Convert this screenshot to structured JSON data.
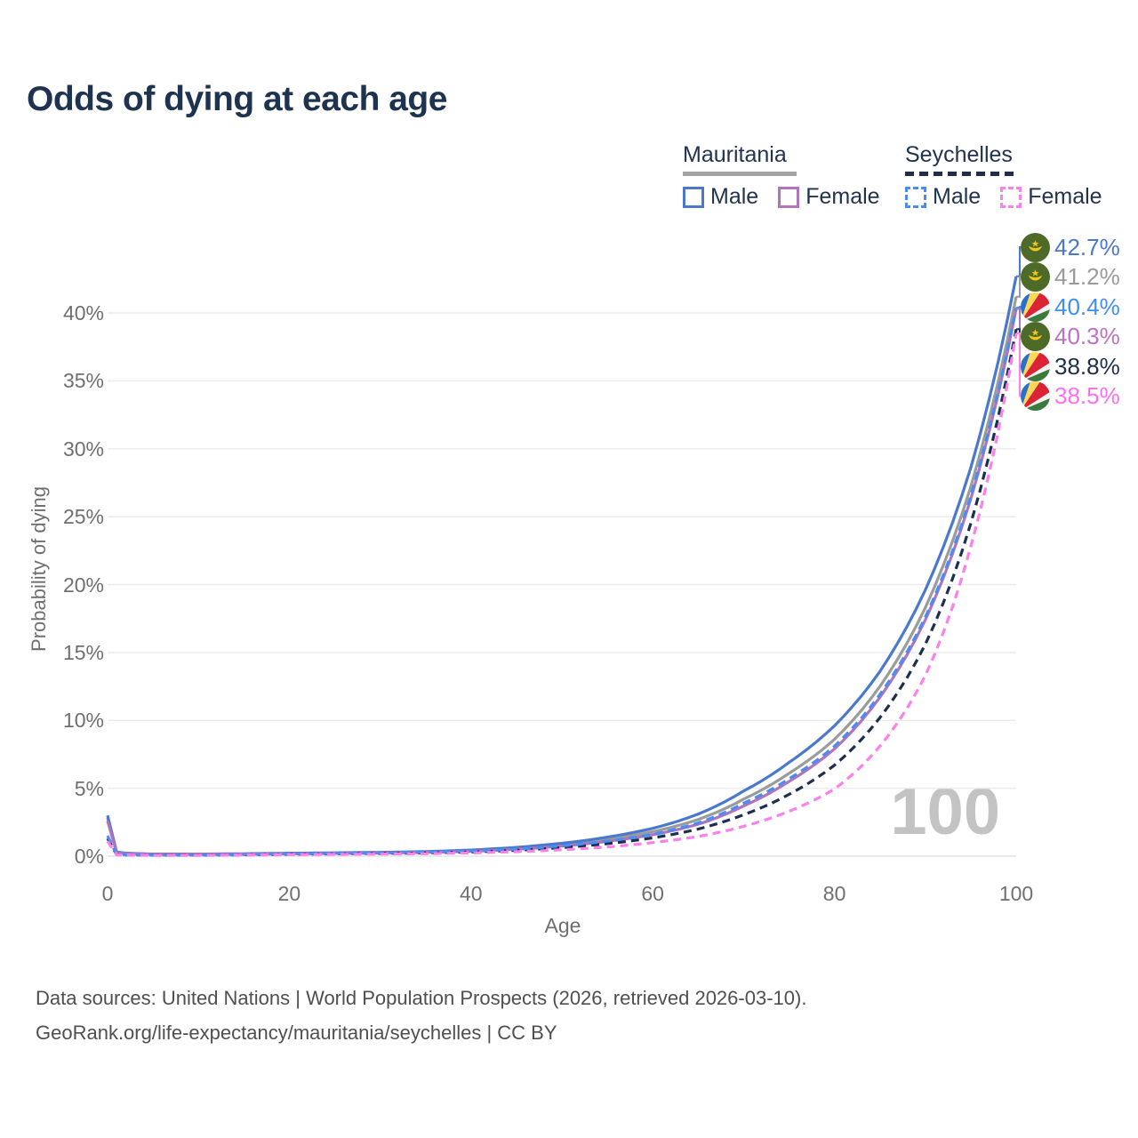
{
  "title": "Odds of dying at each age",
  "watermark": "100",
  "legend": {
    "groups": [
      {
        "name": "Mauritania",
        "line_style": "solid",
        "underline_color": "#a3a3a3",
        "items": [
          {
            "label": "Male",
            "color": "#4a78cc"
          },
          {
            "label": "Female",
            "color": "#b273bd"
          }
        ]
      },
      {
        "name": "Seychelles",
        "line_style": "dashed",
        "underline_color": "#1e2f4d",
        "items": [
          {
            "label": "Male",
            "color": "#4a8cf2"
          },
          {
            "label": "Female",
            "color": "#fb80ea"
          }
        ]
      }
    ]
  },
  "icons": {
    "flags": {
      "mauritania": {
        "name": "mauritania-flag-icon",
        "bg": "#4e6a28",
        "crescent": "#f2c71d"
      },
      "seychelles": {
        "name": "seychelles-flag-icon",
        "blue": "#2a6fc9",
        "yellow": "#fcd856",
        "red": "#da2334",
        "white": "#f2f2f2",
        "green": "#3c7a3c"
      }
    }
  },
  "chart_data": {
    "type": "line",
    "title": "Odds of dying at each age",
    "xlabel": "Age",
    "ylabel": "Probability of dying",
    "xlim": [
      0,
      100
    ],
    "ylim": [
      0,
      43
    ],
    "grid": "horizontal",
    "x_ticks": [
      "0",
      "20",
      "40",
      "60",
      "80",
      "100"
    ],
    "x_tick_values": [
      0,
      20,
      40,
      60,
      80,
      100
    ],
    "y_ticks": [
      "0%",
      "5%",
      "10%",
      "15%",
      "20%",
      "25%",
      "30%",
      "35%",
      "40%"
    ],
    "y_tick_values": [
      0,
      5,
      10,
      15,
      20,
      25,
      30,
      35,
      40
    ],
    "x": [
      0,
      1,
      2,
      5,
      10,
      15,
      20,
      25,
      30,
      35,
      40,
      45,
      50,
      55,
      60,
      65,
      70,
      75,
      80,
      85,
      90,
      95,
      100
    ],
    "series": [
      {
        "name": "Mauritania — Male",
        "country": "mauritania",
        "sex": "male",
        "color": "#4a78cc",
        "style": "solid",
        "end_label": "42.7%",
        "label_color": "#4a78cc",
        "values": [
          3.0,
          0.3,
          0.22,
          0.16,
          0.15,
          0.18,
          0.22,
          0.25,
          0.28,
          0.34,
          0.45,
          0.65,
          0.95,
          1.4,
          2.05,
          3.1,
          4.8,
          6.9,
          9.6,
          13.6,
          19.6,
          28.6,
          42.7
        ]
      },
      {
        "name": "Mauritania — Both sexes",
        "country": "mauritania",
        "sex": "both",
        "color": "#9b9b9b",
        "style": "solid",
        "end_label": "41.2%",
        "label_color": "#9b9b9b",
        "values": [
          2.8,
          0.27,
          0.2,
          0.15,
          0.14,
          0.16,
          0.2,
          0.23,
          0.26,
          0.31,
          0.41,
          0.58,
          0.85,
          1.25,
          1.8,
          2.7,
          4.2,
          6.1,
          8.6,
          12.5,
          18.3,
          27.2,
          41.2
        ]
      },
      {
        "name": "Seychelles — Male",
        "country": "seychelles",
        "sex": "male",
        "color": "#4a8cf2",
        "style": "dashed",
        "end_label": "40.4%",
        "label_color": "#3f8ef7",
        "values": [
          1.5,
          0.13,
          0.1,
          0.08,
          0.08,
          0.12,
          0.17,
          0.2,
          0.24,
          0.29,
          0.37,
          0.52,
          0.76,
          1.11,
          1.61,
          2.45,
          3.9,
          5.7,
          8.1,
          11.9,
          17.6,
          26.5,
          40.4
        ]
      },
      {
        "name": "Mauritania — Female",
        "country": "mauritania",
        "sex": "female",
        "color": "#b273bd",
        "style": "solid",
        "end_label": "40.3%",
        "label_color": "#c06fc4",
        "values": [
          2.6,
          0.24,
          0.18,
          0.13,
          0.13,
          0.15,
          0.18,
          0.2,
          0.23,
          0.28,
          0.36,
          0.51,
          0.74,
          1.09,
          1.58,
          2.35,
          3.7,
          5.5,
          7.9,
          11.7,
          17.4,
          26.3,
          40.3
        ]
      },
      {
        "name": "Seychelles — Both sexes",
        "country": "seychelles",
        "sex": "both",
        "color": "#1e2f4d",
        "style": "dashed",
        "end_label": "38.8%",
        "label_color": "#1e2f4d",
        "values": [
          1.3,
          0.11,
          0.09,
          0.07,
          0.07,
          0.1,
          0.14,
          0.17,
          0.2,
          0.24,
          0.31,
          0.43,
          0.63,
          0.92,
          1.35,
          2.0,
          3.05,
          4.55,
          6.7,
          10.2,
          15.6,
          24.5,
          38.8
        ]
      },
      {
        "name": "Seychelles — Female",
        "country": "seychelles",
        "sex": "female",
        "color": "#fb80ea",
        "style": "dashed",
        "end_label": "38.5%",
        "label_color": "#fb6ff0",
        "values": [
          1.1,
          0.1,
          0.08,
          0.06,
          0.06,
          0.08,
          0.11,
          0.13,
          0.15,
          0.18,
          0.24,
          0.33,
          0.47,
          0.68,
          1.0,
          1.45,
          2.2,
          3.3,
          4.95,
          8.1,
          13.3,
          22.8,
          38.5
        ]
      }
    ],
    "end_label_order": [
      0,
      1,
      2,
      3,
      4,
      5
    ],
    "legend_position": "top-right",
    "watermark": "100"
  },
  "footer": {
    "line1": "Data sources: United Nations | World Population Prospects (2026, retrieved 2026-03-10).",
    "line2": "GeoRank.org/life-expectancy/mauritania/seychelles | CC BY"
  }
}
